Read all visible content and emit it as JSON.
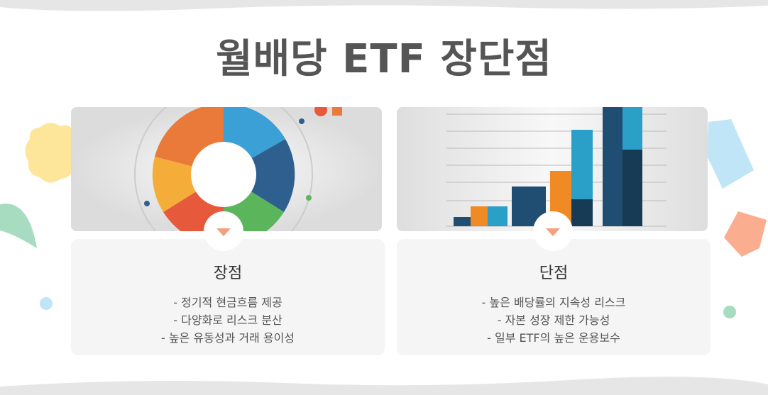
{
  "header": {
    "title": "월배당 ETF 장단점"
  },
  "cards": [
    {
      "title": "장점",
      "items": [
        "- 정기적 현금흐름 제공",
        "- 다양화로 리스크 분산",
        "- 높은 유동성과 거래 용이성"
      ]
    },
    {
      "title": "단점",
      "items": [
        "- 높은 배당률의 지속성 리스크",
        "- 자본 성장 제한 가능성",
        "- 일부 ETF의 높은 운용보수"
      ]
    }
  ]
}
